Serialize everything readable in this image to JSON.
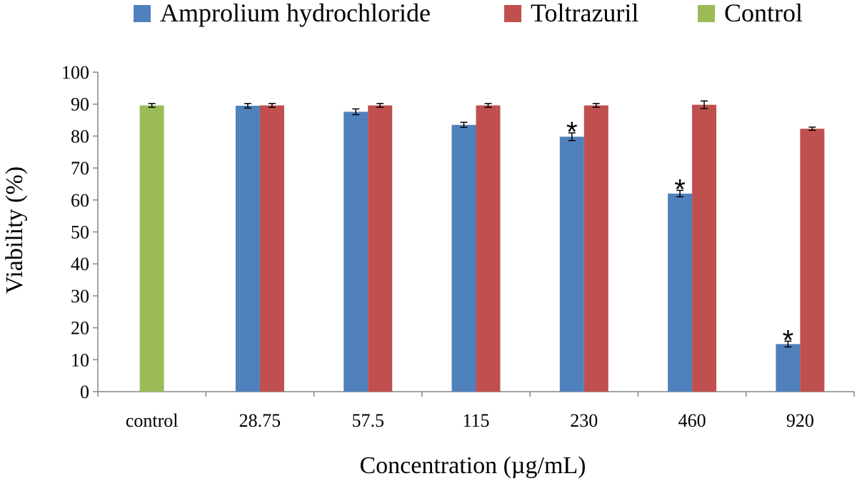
{
  "chart_data": {
    "type": "bar",
    "title": "",
    "xlabel": "Concentration  (µg/mL)",
    "ylabel": "Viability (%)",
    "ylim": [
      0,
      100
    ],
    "yticks": [
      0,
      10,
      20,
      30,
      40,
      50,
      60,
      70,
      80,
      90,
      100
    ],
    "grid": false,
    "legend_position": "top",
    "categories": [
      "control",
      "28.75",
      "57.5",
      "115",
      "230",
      "460",
      "920"
    ],
    "series": [
      {
        "name": "Amprolium hydrochloride",
        "color": "#4F81BD",
        "values": [
          null,
          89.5,
          87.6,
          83.5,
          79.8,
          62.0,
          14.9
        ],
        "errors": [
          null,
          0.7,
          0.9,
          0.8,
          1.2,
          1.0,
          0.9
        ]
      },
      {
        "name": "Toltrazuril",
        "color": "#C0504D",
        "values": [
          null,
          89.6,
          89.6,
          89.6,
          89.6,
          89.8,
          82.3
        ],
        "errors": [
          null,
          0.6,
          0.6,
          0.6,
          0.6,
          1.2,
          0.5
        ]
      },
      {
        "name": "Control",
        "color": "#9BBB59",
        "values": [
          89.6,
          null,
          null,
          null,
          null,
          null,
          null
        ],
        "errors": [
          0.6,
          null,
          null,
          null,
          null,
          null,
          null
        ]
      }
    ],
    "annotations": [
      {
        "series": "Amprolium hydrochloride",
        "category": "230",
        "text": "*"
      },
      {
        "series": "Amprolium hydrochloride",
        "category": "460",
        "text": "*"
      },
      {
        "series": "Amprolium hydrochloride",
        "category": "920",
        "text": "*"
      }
    ]
  }
}
